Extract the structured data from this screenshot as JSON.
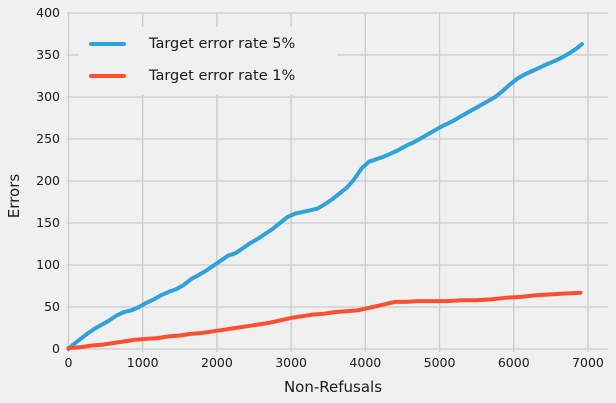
{
  "figure": {
    "background": "#f0f0f0",
    "grid_color": "#cbcbcb",
    "text_color": "#1a1a1a"
  },
  "axes": {
    "x_label": "Non-Refusals",
    "y_label": "Errors"
  },
  "legend": {
    "items": [
      {
        "label": "Target error rate 5%",
        "color": "#30a2da"
      },
      {
        "label": "Target error rate 1%",
        "color": "#fc4f30"
      }
    ]
  },
  "chart_data": {
    "type": "line",
    "title": "",
    "xlabel": "Non-Refusals",
    "ylabel": "Errors",
    "xlim": [
      -20,
      7270
    ],
    "ylim": [
      -3.6,
      400
    ],
    "xticks": [
      0,
      1000,
      2000,
      3000,
      4000,
      5000,
      6000,
      7000
    ],
    "yticks": [
      0,
      50,
      100,
      150,
      200,
      250,
      300,
      350,
      400
    ],
    "grid": true,
    "legend_position": "upper left",
    "line_width": 4,
    "series": [
      {
        "name": "Target error rate 5%",
        "color": "#30a2da",
        "points": [
          [
            0,
            0
          ],
          [
            60,
            5
          ],
          [
            150,
            11
          ],
          [
            250,
            18
          ],
          [
            350,
            24
          ],
          [
            450,
            29
          ],
          [
            550,
            34
          ],
          [
            650,
            40
          ],
          [
            750,
            44
          ],
          [
            850,
            46
          ],
          [
            950,
            50
          ],
          [
            1050,
            55
          ],
          [
            1150,
            59
          ],
          [
            1250,
            64
          ],
          [
            1350,
            68
          ],
          [
            1450,
            71
          ],
          [
            1550,
            76
          ],
          [
            1650,
            83
          ],
          [
            1750,
            88
          ],
          [
            1850,
            93
          ],
          [
            1950,
            99
          ],
          [
            2050,
            105
          ],
          [
            2150,
            111
          ],
          [
            2250,
            114
          ],
          [
            2350,
            120
          ],
          [
            2450,
            126
          ],
          [
            2550,
            131
          ],
          [
            2650,
            137
          ],
          [
            2750,
            143
          ],
          [
            2850,
            150
          ],
          [
            2950,
            157
          ],
          [
            3050,
            161
          ],
          [
            3150,
            163
          ],
          [
            3250,
            165
          ],
          [
            3350,
            167
          ],
          [
            3450,
            172
          ],
          [
            3550,
            178
          ],
          [
            3650,
            185
          ],
          [
            3750,
            192
          ],
          [
            3850,
            202
          ],
          [
            3950,
            215
          ],
          [
            4050,
            223
          ],
          [
            4150,
            226
          ],
          [
            4250,
            229
          ],
          [
            4350,
            233
          ],
          [
            4450,
            237
          ],
          [
            4550,
            242
          ],
          [
            4650,
            246
          ],
          [
            4750,
            251
          ],
          [
            4850,
            256
          ],
          [
            4950,
            261
          ],
          [
            5050,
            266
          ],
          [
            5150,
            270
          ],
          [
            5250,
            275
          ],
          [
            5350,
            280
          ],
          [
            5450,
            285
          ],
          [
            5550,
            290
          ],
          [
            5650,
            295
          ],
          [
            5750,
            300
          ],
          [
            5850,
            307
          ],
          [
            5950,
            315
          ],
          [
            6050,
            322
          ],
          [
            6150,
            327
          ],
          [
            6250,
            331
          ],
          [
            6350,
            335
          ],
          [
            6450,
            339
          ],
          [
            6550,
            343
          ],
          [
            6650,
            347
          ],
          [
            6750,
            352
          ],
          [
            6850,
            358
          ],
          [
            6920,
            363
          ]
        ]
      },
      {
        "name": "Target error rate 1%",
        "color": "#fc4f30",
        "points": [
          [
            0,
            1
          ],
          [
            150,
            2
          ],
          [
            300,
            4
          ],
          [
            450,
            5
          ],
          [
            600,
            7
          ],
          [
            750,
            9
          ],
          [
            900,
            11
          ],
          [
            1050,
            12
          ],
          [
            1200,
            13
          ],
          [
            1350,
            15
          ],
          [
            1500,
            16
          ],
          [
            1650,
            18
          ],
          [
            1800,
            19
          ],
          [
            1950,
            21
          ],
          [
            2100,
            23
          ],
          [
            2250,
            25
          ],
          [
            2400,
            27
          ],
          [
            2550,
            29
          ],
          [
            2700,
            31
          ],
          [
            2850,
            34
          ],
          [
            3000,
            37
          ],
          [
            3150,
            39
          ],
          [
            3300,
            41
          ],
          [
            3450,
            42
          ],
          [
            3600,
            44
          ],
          [
            3750,
            45
          ],
          [
            3900,
            46
          ],
          [
            4000,
            48
          ],
          [
            4100,
            50
          ],
          [
            4200,
            52
          ],
          [
            4300,
            54
          ],
          [
            4400,
            56
          ],
          [
            4550,
            56
          ],
          [
            4700,
            57
          ],
          [
            4900,
            57
          ],
          [
            5100,
            57
          ],
          [
            5300,
            58
          ],
          [
            5500,
            58
          ],
          [
            5700,
            59
          ],
          [
            5900,
            61
          ],
          [
            6100,
            62
          ],
          [
            6300,
            64
          ],
          [
            6500,
            65
          ],
          [
            6700,
            66
          ],
          [
            6900,
            67
          ]
        ]
      }
    ]
  }
}
